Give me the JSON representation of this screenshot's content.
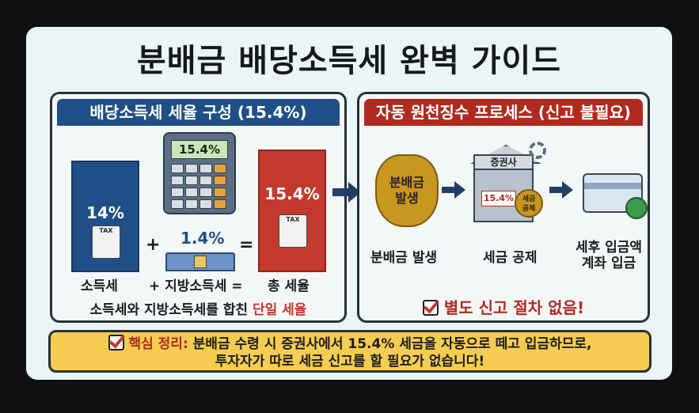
{
  "title": "분배금 배당소득세 완벽 가이드",
  "left_panel": {
    "header": "배당소득세 세율 구성 (15.4%)",
    "income_tax_rate": "14%",
    "income_tax_label": "소득세",
    "local_tax_rate": "1.4%",
    "local_tax_label": "+ 지방소득세 =",
    "plus_sign": "+",
    "equals_sign": "=",
    "total_rate": "15.4%",
    "total_label": "총 세율",
    "calculator_display": "15.4%",
    "doc_tag": "TAX",
    "note_prefix": "소득세와 지방소득세를 합친 ",
    "note_highlight": "단일 세율"
  },
  "right_panel": {
    "header": "자동 원천징수 프로세스 (신고 불필요)",
    "bag_text": "분배금\n발생",
    "step1_label": "분배금 발생",
    "building_label": "증권사",
    "tax_tag": "15.4%",
    "coin_text": "세금\n공제",
    "step2_label": "세금 공제",
    "step3_label": "세후 입금액\n계좌 입금",
    "note": "별도 신고 절차 없음!"
  },
  "summary": {
    "prefix": "핵심 정리:",
    "line1": " 분배금 수령 시 증권사에서 15.4% 세금을 자동으로 떼고 입금하므로,",
    "line2": "투자자가 따로 세금 신고를 할 필요가 없습니다!"
  },
  "colors": {
    "blue": "#1f4f86",
    "red": "#c4392d",
    "yellow": "#f6cc52",
    "card_bg": "#eaf6f6"
  }
}
